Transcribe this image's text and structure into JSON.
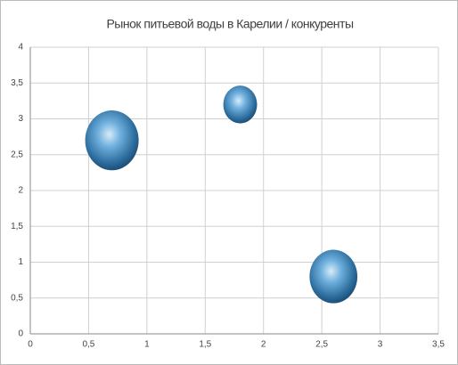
{
  "chart_data": {
    "type": "bubble",
    "title": "Рынок питьевой воды в Карелии / конкуренты",
    "series": [
      {
        "name": "",
        "color": "#4a8fc8",
        "x": [
          0.7,
          1.8,
          2.6
        ],
        "values": [
          2.7,
          3.2,
          0.8
        ],
        "sizes": [
          5,
          2,
          4
        ]
      }
    ],
    "xlim": [
      0,
      3.5
    ],
    "xticks": [
      0,
      {
        "value": 0.5,
        "label": "0,5"
      },
      1,
      {
        "value": 1.5,
        "label": "1,5"
      },
      2,
      {
        "value": 2.5,
        "label": "2,5"
      },
      3,
      {
        "value": 3.5,
        "label": "3,5"
      }
    ],
    "ylim": [
      0,
      4
    ],
    "yticks": [
      0,
      {
        "value": 0.5,
        "label": "0,5"
      },
      1,
      {
        "value": 1.5,
        "label": "1,5"
      },
      2,
      {
        "value": 2.5,
        "label": "2,5"
      },
      3,
      {
        "value": 3.5,
        "label": "3,5"
      },
      4
    ],
    "grid": true
  }
}
